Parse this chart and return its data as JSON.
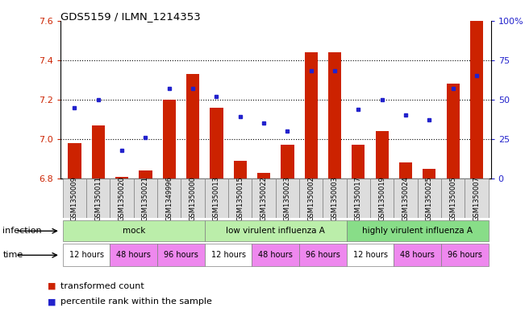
{
  "title": "GDS5159 / ILMN_1214353",
  "samples": [
    "GSM1350009",
    "GSM1350011",
    "GSM1350020",
    "GSM1350021",
    "GSM1349996",
    "GSM1350000",
    "GSM1350013",
    "GSM1350015",
    "GSM1350022",
    "GSM1350023",
    "GSM1350002",
    "GSM1350003",
    "GSM1350017",
    "GSM1350019",
    "GSM1350024",
    "GSM1350025",
    "GSM1350005",
    "GSM1350007"
  ],
  "bar_values": [
    6.98,
    7.07,
    6.81,
    6.84,
    7.2,
    7.33,
    7.16,
    6.89,
    6.83,
    6.97,
    7.44,
    7.44,
    6.97,
    7.04,
    6.88,
    6.85,
    7.28,
    7.6
  ],
  "dot_pct": [
    45,
    50,
    18,
    26,
    57,
    57,
    52,
    39,
    35,
    30,
    68,
    68,
    44,
    50,
    40,
    37,
    57,
    65
  ],
  "ylim": [
    6.8,
    7.6
  ],
  "y_ticks": [
    6.8,
    7.0,
    7.2,
    7.4,
    7.6
  ],
  "y2_ticks": [
    0,
    25,
    50,
    75,
    100
  ],
  "bar_color": "#cc2200",
  "dot_color": "#2222cc",
  "bar_baseline": 6.8,
  "inf_groups": [
    {
      "label": "mock",
      "start": 0,
      "end": 6,
      "color": "#bbeeaa"
    },
    {
      "label": "low virulent influenza A",
      "start": 6,
      "end": 12,
      "color": "#bbeeaa"
    },
    {
      "label": "highly virulent influenza A",
      "start": 12,
      "end": 18,
      "color": "#88dd88"
    }
  ],
  "time_cells": [
    {
      "label": "12 hours",
      "start": 0,
      "end": 2,
      "color": "#ffffff"
    },
    {
      "label": "48 hours",
      "start": 2,
      "end": 4,
      "color": "#ee88ee"
    },
    {
      "label": "96 hours",
      "start": 4,
      "end": 6,
      "color": "#ee88ee"
    },
    {
      "label": "12 hours",
      "start": 6,
      "end": 8,
      "color": "#ffffff"
    },
    {
      "label": "48 hours",
      "start": 8,
      "end": 10,
      "color": "#ee88ee"
    },
    {
      "label": "96 hours",
      "start": 10,
      "end": 12,
      "color": "#ee88ee"
    },
    {
      "label": "12 hours",
      "start": 12,
      "end": 14,
      "color": "#ffffff"
    },
    {
      "label": "48 hours",
      "start": 14,
      "end": 16,
      "color": "#ee88ee"
    },
    {
      "label": "96 hours",
      "start": 16,
      "end": 18,
      "color": "#ee88ee"
    }
  ],
  "infection_label": "infection",
  "time_label": "time",
  "legend1": "transformed count",
  "legend2": "percentile rank within the sample"
}
